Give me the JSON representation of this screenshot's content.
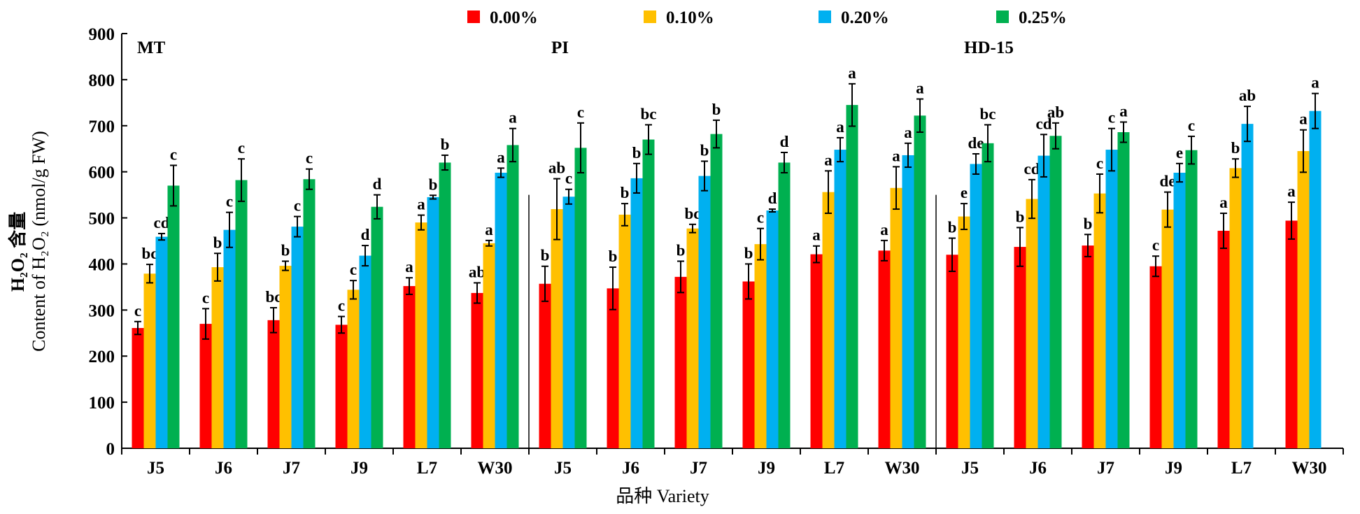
{
  "chart_data": {
    "type": "bar",
    "ylabel_line1": "H₂O₂ 含量",
    "ylabel_line2": "Content of H₂O₂ (nmol/g FW)",
    "xlabel": "品种 Variety",
    "ylim": [
      0,
      900
    ],
    "yticks": [
      0,
      100,
      200,
      300,
      400,
      500,
      600,
      700,
      800,
      900
    ],
    "grid": false,
    "legend_position": "top",
    "colors": [
      "#ff0000",
      "#ffc000",
      "#00b0f0",
      "#00b050"
    ],
    "series_names": [
      "0.00%",
      "0.10%",
      "0.20%",
      "0.25%"
    ],
    "groups": [
      {
        "panel": "MT",
        "varieties": [
          {
            "name": "J5",
            "values": [
              261,
              379,
              459,
              570
            ],
            "errors": [
              14,
              20,
              7,
              44
            ],
            "letters": [
              "c",
              "bc",
              "cd",
              "c"
            ]
          },
          {
            "name": "J6",
            "values": [
              270,
              393,
              474,
              582
            ],
            "errors": [
              33,
              30,
              38,
              46
            ],
            "letters": [
              "c",
              "b",
              "c",
              "c"
            ]
          },
          {
            "name": "J7",
            "values": [
              278,
              396,
              481,
              584
            ],
            "errors": [
              27,
              10,
              22,
              22
            ],
            "letters": [
              "bc",
              "b",
              "c",
              "c"
            ]
          },
          {
            "name": "J9",
            "values": [
              268,
              344,
              418,
              524
            ],
            "errors": [
              18,
              20,
              22,
              26
            ],
            "letters": [
              "c",
              "c",
              "d",
              "d"
            ]
          },
          {
            "name": "L7",
            "values": [
              352,
              490,
              545,
              620
            ],
            "errors": [
              18,
              16,
              4,
              16
            ],
            "letters": [
              "a",
              "a",
              "b",
              "b"
            ]
          },
          {
            "name": "W30",
            "values": [
              337,
              445,
              598,
              658
            ],
            "errors": [
              22,
              6,
              10,
              36
            ],
            "letters": [
              "ab",
              "a",
              "a",
              "a"
            ]
          }
        ]
      },
      {
        "panel": "PI",
        "varieties": [
          {
            "name": "J5",
            "values": [
              357,
              519,
              546,
              652
            ],
            "errors": [
              38,
              66,
              16,
              54
            ],
            "letters": [
              "b",
              "ab",
              "c",
              "c"
            ]
          },
          {
            "name": "J6",
            "values": [
              347,
              507,
              586,
              670
            ],
            "errors": [
              46,
              24,
              32,
              32
            ],
            "letters": [
              "b",
              "b",
              "b",
              "bc"
            ]
          },
          {
            "name": "J7",
            "values": [
              372,
              477,
              591,
              682
            ],
            "errors": [
              34,
              9,
              32,
              30
            ],
            "letters": [
              "b",
              "bc",
              "b",
              "b"
            ]
          },
          {
            "name": "J9",
            "values": [
              362,
              443,
              516,
              620
            ],
            "errors": [
              38,
              34,
              3,
              22
            ],
            "letters": [
              "b",
              "c",
              "d",
              "d"
            ]
          },
          {
            "name": "L7",
            "values": [
              421,
              556,
              648,
              745
            ],
            "errors": [
              18,
              46,
              26,
              46
            ],
            "letters": [
              "a",
              "a",
              "a",
              "a"
            ]
          },
          {
            "name": "W30",
            "values": [
              429,
              565,
              636,
              722
            ],
            "errors": [
              22,
              46,
              26,
              36
            ],
            "letters": [
              "a",
              "a",
              "a",
              "a"
            ]
          }
        ]
      },
      {
        "panel": "HD-15",
        "varieties": [
          {
            "name": "J5",
            "values": [
              420,
              503,
              617,
              662
            ],
            "errors": [
              36,
              28,
              22,
              40
            ],
            "letters": [
              "b",
              "e",
              "de",
              "bc"
            ]
          },
          {
            "name": "J6",
            "values": [
              437,
              541,
              635,
              678
            ],
            "errors": [
              42,
              42,
              46,
              28
            ],
            "letters": [
              "b",
              "cd",
              "cd",
              "ab"
            ]
          },
          {
            "name": "J7",
            "values": [
              440,
              553,
              648,
              686
            ],
            "errors": [
              24,
              42,
              46,
              22
            ],
            "letters": [
              "b",
              "c",
              "c",
              "a"
            ]
          },
          {
            "name": "J9",
            "values": [
              395,
              518,
              598,
              647
            ],
            "errors": [
              22,
              38,
              20,
              30
            ],
            "letters": [
              "c",
              "de",
              "e",
              "c"
            ]
          },
          {
            "name": "L7",
            "values": [
              472,
              608,
              704
            ],
            "errors": [
              38,
              20,
              38
            ],
            "letters": [
              "a",
              "b",
              "ab"
            ]
          },
          {
            "name": "W30",
            "values": [
              494,
              645,
              732
            ],
            "errors": [
              40,
              46,
              38
            ],
            "letters": [
              "a",
              "a",
              "a"
            ]
          }
        ]
      }
    ]
  }
}
